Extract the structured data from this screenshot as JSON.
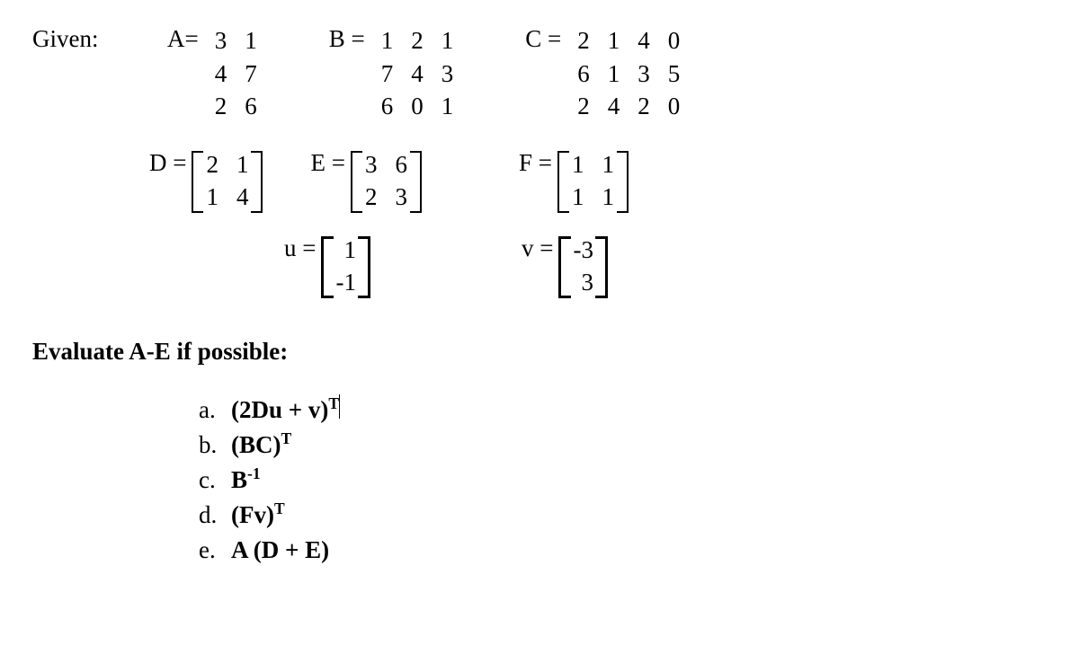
{
  "labels": {
    "given": "Given:",
    "evaluate": "Evaluate A-E if possible:"
  },
  "matrices": {
    "A": {
      "name": "A=",
      "rows": [
        [
          "3",
          "1"
        ],
        [
          "4",
          "7"
        ],
        [
          "2",
          "6"
        ]
      ]
    },
    "B": {
      "name": "B =",
      "rows": [
        [
          "1",
          "2",
          "1"
        ],
        [
          "7",
          "4",
          "3"
        ],
        [
          "6",
          "0",
          "1"
        ]
      ]
    },
    "C": {
      "name": "C =",
      "rows": [
        [
          "2",
          "1",
          "4",
          "0"
        ],
        [
          "6",
          "1",
          "3",
          "5"
        ],
        [
          "2",
          "4",
          "2",
          "0"
        ]
      ]
    },
    "D": {
      "name": "D =",
      "rows": [
        [
          "2",
          "1"
        ],
        [
          "1",
          "4"
        ]
      ]
    },
    "E": {
      "name": "E =",
      "rows": [
        [
          "3",
          "6"
        ],
        [
          "2",
          "3"
        ]
      ]
    },
    "F": {
      "name": "F =",
      "rows": [
        [
          "1",
          "1"
        ],
        [
          "1",
          "1"
        ]
      ]
    },
    "u": {
      "name": "u =",
      "rows": [
        [
          "1"
        ],
        [
          "-1"
        ]
      ]
    },
    "v": {
      "name": "v =",
      "rows": [
        [
          "-3"
        ],
        [
          "3"
        ]
      ]
    }
  },
  "problems": {
    "a": {
      "label": "a.",
      "pre": "(2Du + v)",
      "sup": "T"
    },
    "b": {
      "label": "b.",
      "pre": "(BC)",
      "sup": "T"
    },
    "c": {
      "label": "c.",
      "pre": "B",
      "sup": "-1"
    },
    "d": {
      "label": "d.",
      "pre": "(Fv)",
      "sup": "T"
    },
    "e": {
      "label": "e.",
      "pre": "A (D + E)",
      "sup": ""
    }
  }
}
